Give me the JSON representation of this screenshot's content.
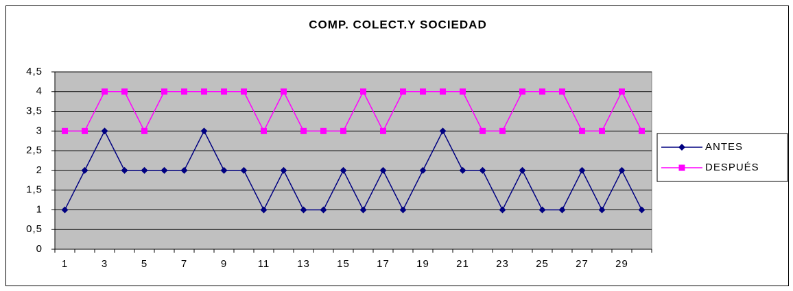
{
  "chart_data": {
    "type": "line",
    "title": "COMP. COLECT.Y SOCIEDAD",
    "categories": [
      "1",
      null,
      "3",
      null,
      "5",
      null,
      "7",
      null,
      "9",
      null,
      "11",
      null,
      "13",
      null,
      "15",
      null,
      "17",
      null,
      "19",
      null,
      "21",
      null,
      "23",
      null,
      "25",
      null,
      "27",
      null,
      "29",
      null
    ],
    "series": [
      {
        "name": "ANTES",
        "color": "#000080",
        "marker": "diamond",
        "values": [
          1,
          2,
          3,
          2,
          2,
          2,
          2,
          3,
          2,
          2,
          1,
          2,
          1,
          1,
          2,
          1,
          2,
          1,
          2,
          3,
          2,
          2,
          1,
          2,
          1,
          1,
          2,
          1,
          2,
          1
        ]
      },
      {
        "name": "DESPUÉS",
        "color": "#ff00ff",
        "marker": "square",
        "values": [
          3,
          3,
          4,
          4,
          3,
          4,
          4,
          4,
          4,
          4,
          3,
          4,
          3,
          3,
          3,
          4,
          3,
          4,
          4,
          4,
          4,
          3,
          3,
          4,
          4,
          4,
          3,
          3,
          4,
          3
        ]
      }
    ],
    "ylim": [
      0,
      4.5
    ],
    "yticks": [
      0,
      {
        "value": 0.5,
        "label": "0,5"
      },
      1,
      {
        "value": 1.5,
        "label": "1,5"
      },
      2,
      {
        "value": 2.5,
        "label": "2,5"
      },
      3,
      {
        "value": 3.5,
        "label": "3,5"
      },
      4,
      {
        "value": 4.5,
        "label": "4,5"
      }
    ],
    "grid": true,
    "legend": "right"
  }
}
